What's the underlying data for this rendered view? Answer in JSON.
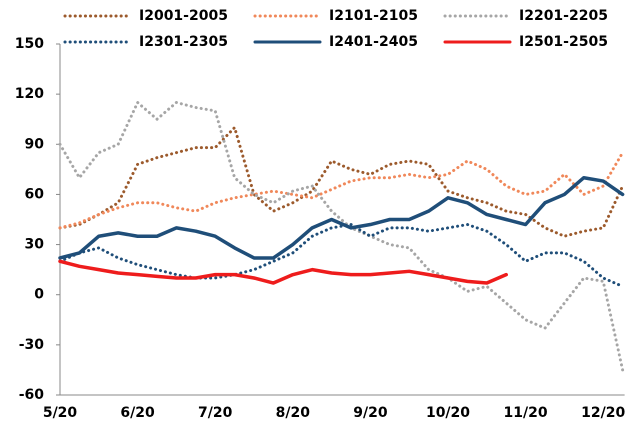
{
  "chart_data": {
    "type": "line",
    "categories": [
      "5/20",
      null,
      null,
      null,
      "6/20",
      null,
      null,
      null,
      "7/20",
      null,
      null,
      null,
      "8/20",
      null,
      null,
      null,
      "9/20",
      null,
      null,
      null,
      "10/20",
      null,
      null,
      null,
      "11/20",
      null,
      null,
      null,
      "12/20",
      null
    ],
    "ylim": [
      -60,
      150
    ],
    "yticks": [
      -60,
      -30,
      0,
      30,
      60,
      90,
      120,
      150
    ],
    "series": [
      {
        "name": "I2001-2005",
        "color": "#9c5a2c",
        "style": "dotted",
        "values": [
          40,
          42,
          48,
          55,
          78,
          82,
          85,
          88,
          88,
          100,
          60,
          50,
          55,
          62,
          80,
          75,
          72,
          78,
          80,
          78,
          62,
          58,
          55,
          50,
          48,
          40,
          35,
          38,
          40,
          65
        ]
      },
      {
        "name": "I2101-2105",
        "color": "#f0885a",
        "style": "dotted",
        "values": [
          40,
          43,
          48,
          52,
          55,
          55,
          52,
          50,
          55,
          58,
          60,
          62,
          60,
          58,
          63,
          68,
          70,
          70,
          72,
          70,
          72,
          80,
          75,
          65,
          60,
          62,
          72,
          60,
          65,
          85
        ]
      },
      {
        "name": "I2201-2205",
        "color": "#a6a6a6",
        "style": "dotted",
        "values": [
          90,
          70,
          85,
          90,
          115,
          105,
          115,
          112,
          110,
          70,
          60,
          55,
          62,
          65,
          50,
          40,
          35,
          30,
          28,
          15,
          10,
          2,
          5,
          -5,
          -15,
          -20,
          -5,
          10,
          8,
          -45
        ]
      },
      {
        "name": "I2301-2305",
        "color": "#1f4e79",
        "style": "dotted",
        "values": [
          20,
          25,
          28,
          22,
          18,
          15,
          12,
          10,
          10,
          12,
          15,
          20,
          25,
          35,
          40,
          42,
          35,
          40,
          40,
          38,
          40,
          42,
          38,
          30,
          20,
          25,
          25,
          20,
          10,
          5
        ]
      },
      {
        "name": "I2401-2405",
        "color": "#1f4e79",
        "style": "solid",
        "values": [
          22,
          25,
          35,
          37,
          35,
          35,
          40,
          38,
          35,
          28,
          22,
          22,
          30,
          40,
          45,
          40,
          42,
          45,
          45,
          50,
          58,
          55,
          48,
          45,
          42,
          55,
          60,
          70,
          68,
          60
        ]
      },
      {
        "name": "I2501-2505",
        "color": "#ee1c1c",
        "style": "solid",
        "values": [
          20,
          17,
          15,
          13,
          12,
          11,
          10,
          10,
          12,
          12,
          10,
          7,
          12,
          15,
          13,
          12,
          12,
          13,
          14,
          12,
          10,
          8,
          7,
          12,
          null,
          null,
          null,
          null,
          null,
          null
        ]
      }
    ]
  }
}
